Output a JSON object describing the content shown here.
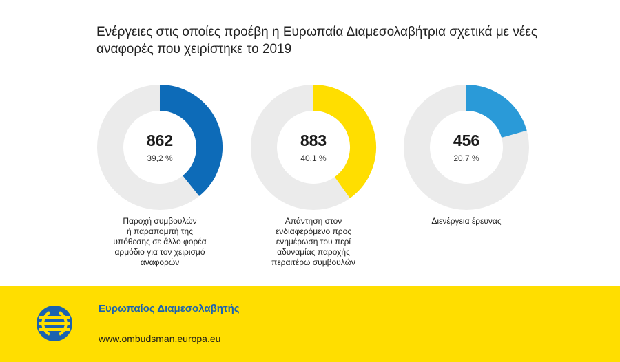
{
  "title": "Ενέργειες στις οποίες προέβη η Ευρωπαία Διαμεσολαβήτρια σχετικά με νέες αναφορές που χειρίστηκε το 2019",
  "chart_data": {
    "type": "pie",
    "title": "Ενέργειες στις οποίες προέβη η Ευρωπαία Διαμεσολαβήτρια σχετικά με νέες αναφορές που χειρίστηκε το 2019",
    "series": [
      {
        "name": "Παροχή συμβουλών ή παραπομπή της υπόθεσης σε άλλο φορέα αρμόδιο για τον χειρισμό αναφορών",
        "value": 862,
        "percent_label": "39,2 %",
        "percent": 39.2,
        "color": "#0d6bb8"
      },
      {
        "name": "Απάντηση στον ενδιαφερόμενο προς ενημέρωση του περί αδυναμίας παροχής περαιτέρω συμβουλών",
        "value": 883,
        "percent_label": "40,1 %",
        "percent": 40.1,
        "color": "#ffde00"
      },
      {
        "name": "Διενέργεια έρευνας",
        "value": 456,
        "percent_label": "20,7 %",
        "percent": 20.7,
        "color": "#2a9ad8"
      }
    ],
    "track_color": "#ebebeb"
  },
  "labels": [
    [
      "Παροχή συμβουλών",
      "ή παραπομπή της",
      "υπόθεσης σε άλλο φορέα",
      "αρμόδιο για τον χειρισμό",
      "αναφορών"
    ],
    [
      "Απάντηση στον",
      "ενδιαφερόμενο προς",
      "ενημέρωση του περί",
      "αδυναμίας παροχής",
      "περαιτέρω συμβουλών"
    ],
    [
      "Διενέργεια έρευνας"
    ]
  ],
  "footer": {
    "org_name": "Ευρωπαίος Διαμεσολαβητής",
    "url": "www.ombudsman.europa.eu",
    "logo_icon": "euro-ombudsman-logo-icon"
  }
}
